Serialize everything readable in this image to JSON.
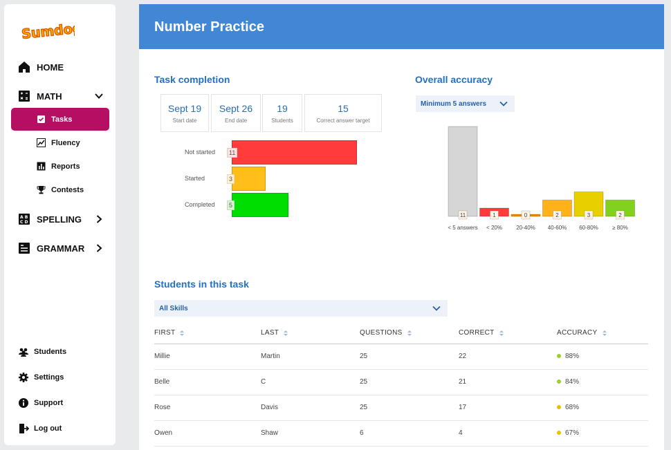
{
  "brand": {
    "logo_text": "Sumdog"
  },
  "sidebar": {
    "home": "HOME",
    "math": "MATH",
    "math_items": [
      {
        "label": "Tasks",
        "icon": "clipboard-check-icon"
      },
      {
        "label": "Fluency",
        "icon": "line-chart-icon"
      },
      {
        "label": "Reports",
        "icon": "bar-report-icon"
      },
      {
        "label": "Contests",
        "icon": "trophy-icon"
      }
    ],
    "spelling": "SPELLING",
    "grammar": "GRAMMAR",
    "bottom": [
      {
        "label": "Students",
        "icon": "users-icon"
      },
      {
        "label": "Settings",
        "icon": "gear-icon"
      },
      {
        "label": "Support",
        "icon": "info-icon"
      },
      {
        "label": "Log out",
        "icon": "logout-icon"
      }
    ]
  },
  "header": {
    "title": "Number Practice"
  },
  "task_completion": {
    "title": "Task completion",
    "stats": [
      {
        "value": "Sept 19",
        "label": "Start date"
      },
      {
        "value": "Sept 26",
        "label": "End date"
      },
      {
        "value": "19",
        "label": "Students"
      },
      {
        "value": "15",
        "label": "Correct answer target"
      }
    ],
    "bars": [
      {
        "label": "Not started",
        "value": 11,
        "color": "#ff3b3b",
        "tag_bg": "#fbe2e2"
      },
      {
        "label": "Started",
        "value": 3,
        "color": "#ffbe1a",
        "tag_bg": "#fff1d2"
      },
      {
        "label": "Completed",
        "value": 5,
        "color": "#00dd00",
        "tag_bg": "#d8f5d0"
      }
    ]
  },
  "accuracy": {
    "title": "Overall accuracy",
    "filter": "Minimum 5 answers"
  },
  "chart_data": {
    "type": "bar",
    "categories": [
      "< 5 answers",
      "< 20%",
      "20-40%",
      "40-60%",
      "60-80%",
      "≥ 80%"
    ],
    "values": [
      11,
      1,
      0,
      2,
      3,
      2
    ],
    "colors": [
      "#d6d6d6",
      "#ff3b3b",
      "#f08a00",
      "#ffb21a",
      "#e8d000",
      "#82d11c"
    ],
    "title": "Overall accuracy"
  },
  "students": {
    "title": "Students in this task",
    "filter": "All Skills",
    "columns": [
      "FIRST",
      "LAST",
      "QUESTIONS",
      "CORRECT",
      "ACCURACY"
    ],
    "rows": [
      {
        "first": "Millie",
        "last": "Martin",
        "questions": "25",
        "correct": "22",
        "accuracy": "88%",
        "dot": "#9ccd2a"
      },
      {
        "first": "Belle",
        "last": "C",
        "questions": "25",
        "correct": "21",
        "accuracy": "84%",
        "dot": "#9ccd2a"
      },
      {
        "first": "Rose",
        "last": "Davis",
        "questions": "25",
        "correct": "17",
        "accuracy": "68%",
        "dot": "#e6c200"
      },
      {
        "first": "Owen",
        "last": "Shaw",
        "questions": "6",
        "correct": "4",
        "accuracy": "67%",
        "dot": "#e6c200"
      }
    ]
  }
}
